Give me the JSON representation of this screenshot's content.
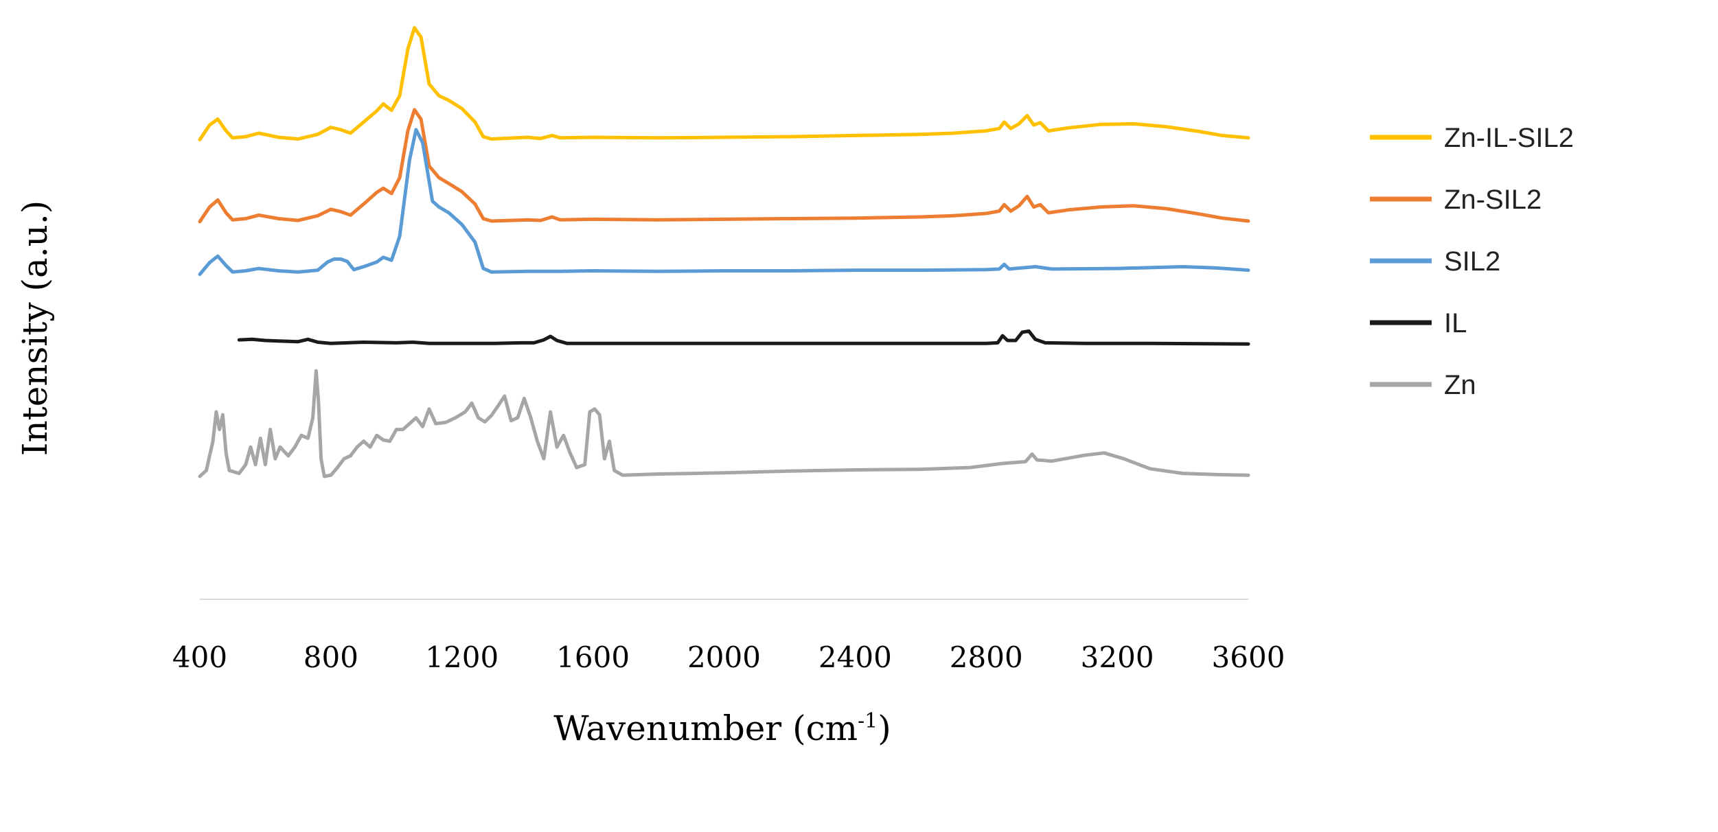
{
  "chart_data": {
    "type": "line",
    "title": "",
    "xlabel": "Wavenumber (cm",
    "xlabel_sup": "-1",
    "xlabel_close": ")",
    "ylabel": "Intensity (a.u.)",
    "xlim": [
      400,
      3600
    ],
    "ylim": [
      0,
      100
    ],
    "xticks": [
      400,
      800,
      1200,
      1600,
      2000,
      2400,
      2800,
      3200,
      3600
    ],
    "xtick_labels": [
      "400",
      "800",
      "1200",
      "1600",
      "2000",
      "2400",
      "2800",
      "3200",
      "3600"
    ],
    "grid": false,
    "legend_position": "right",
    "series": [
      {
        "name": "Zn-IL-SIL2",
        "color": "#FFC000",
        "points": [
          [
            400,
            78.5
          ],
          [
            430,
            81
          ],
          [
            455,
            82
          ],
          [
            480,
            80
          ],
          [
            500,
            78.8
          ],
          [
            540,
            79
          ],
          [
            580,
            79.6
          ],
          [
            640,
            78.9
          ],
          [
            700,
            78.6
          ],
          [
            760,
            79.4
          ],
          [
            800,
            80.6
          ],
          [
            830,
            80.2
          ],
          [
            860,
            79.6
          ],
          [
            900,
            81.5
          ],
          [
            940,
            83.4
          ],
          [
            960,
            84.6
          ],
          [
            985,
            83.5
          ],
          [
            1010,
            86
          ],
          [
            1035,
            94
          ],
          [
            1055,
            97.6
          ],
          [
            1075,
            96
          ],
          [
            1100,
            88
          ],
          [
            1130,
            86
          ],
          [
            1160,
            85.2
          ],
          [
            1200,
            83.8
          ],
          [
            1240,
            81.5
          ],
          [
            1265,
            79
          ],
          [
            1290,
            78.6
          ],
          [
            1400,
            78.9
          ],
          [
            1440,
            78.7
          ],
          [
            1475,
            79.2
          ],
          [
            1500,
            78.8
          ],
          [
            1600,
            78.9
          ],
          [
            1800,
            78.8
          ],
          [
            2000,
            78.9
          ],
          [
            2200,
            79
          ],
          [
            2400,
            79.2
          ],
          [
            2600,
            79.4
          ],
          [
            2700,
            79.6
          ],
          [
            2800,
            80
          ],
          [
            2840,
            80.4
          ],
          [
            2855,
            81.5
          ],
          [
            2875,
            80.4
          ],
          [
            2900,
            81.2
          ],
          [
            2925,
            82.6
          ],
          [
            2945,
            81
          ],
          [
            2965,
            81.4
          ],
          [
            2990,
            80
          ],
          [
            3050,
            80.5
          ],
          [
            3150,
            81.1
          ],
          [
            3250,
            81.2
          ],
          [
            3350,
            80.7
          ],
          [
            3450,
            79.9
          ],
          [
            3520,
            79.2
          ],
          [
            3600,
            78.8
          ]
        ]
      },
      {
        "name": "Zn-SIL2",
        "color": "#ED7D31",
        "points": [
          [
            400,
            64.5
          ],
          [
            430,
            67
          ],
          [
            455,
            68.2
          ],
          [
            480,
            66
          ],
          [
            500,
            64.8
          ],
          [
            540,
            65
          ],
          [
            580,
            65.6
          ],
          [
            640,
            65
          ],
          [
            700,
            64.7
          ],
          [
            760,
            65.5
          ],
          [
            800,
            66.6
          ],
          [
            830,
            66.2
          ],
          [
            860,
            65.6
          ],
          [
            900,
            67.5
          ],
          [
            940,
            69.5
          ],
          [
            960,
            70.2
          ],
          [
            985,
            69.3
          ],
          [
            1010,
            72
          ],
          [
            1035,
            80
          ],
          [
            1055,
            83.6
          ],
          [
            1075,
            82
          ],
          [
            1100,
            74
          ],
          [
            1130,
            72
          ],
          [
            1160,
            71
          ],
          [
            1200,
            69.6
          ],
          [
            1240,
            67.5
          ],
          [
            1265,
            65
          ],
          [
            1290,
            64.6
          ],
          [
            1400,
            64.8
          ],
          [
            1440,
            64.7
          ],
          [
            1475,
            65.3
          ],
          [
            1500,
            64.8
          ],
          [
            1600,
            64.9
          ],
          [
            1800,
            64.8
          ],
          [
            2000,
            64.9
          ],
          [
            2200,
            65
          ],
          [
            2400,
            65.1
          ],
          [
            2600,
            65.3
          ],
          [
            2700,
            65.5
          ],
          [
            2800,
            65.9
          ],
          [
            2840,
            66.3
          ],
          [
            2855,
            67.4
          ],
          [
            2875,
            66.3
          ],
          [
            2900,
            67.2
          ],
          [
            2925,
            68.8
          ],
          [
            2945,
            67
          ],
          [
            2965,
            67.4
          ],
          [
            2990,
            66
          ],
          [
            3050,
            66.5
          ],
          [
            3150,
            67
          ],
          [
            3250,
            67.2
          ],
          [
            3350,
            66.7
          ],
          [
            3450,
            65.8
          ],
          [
            3520,
            65.1
          ],
          [
            3600,
            64.6
          ]
        ]
      },
      {
        "name": "SIL2",
        "color": "#5B9BD5",
        "points": [
          [
            400,
            55.5
          ],
          [
            430,
            57.5
          ],
          [
            455,
            58.6
          ],
          [
            480,
            57
          ],
          [
            500,
            55.9
          ],
          [
            540,
            56.1
          ],
          [
            580,
            56.5
          ],
          [
            640,
            56.1
          ],
          [
            700,
            55.9
          ],
          [
            760,
            56.2
          ],
          [
            790,
            57.6
          ],
          [
            810,
            58.1
          ],
          [
            830,
            58.1
          ],
          [
            850,
            57.7
          ],
          [
            870,
            56.3
          ],
          [
            900,
            56.8
          ],
          [
            940,
            57.6
          ],
          [
            960,
            58.4
          ],
          [
            985,
            57.9
          ],
          [
            1010,
            62
          ],
          [
            1040,
            75
          ],
          [
            1060,
            80.2
          ],
          [
            1080,
            78
          ],
          [
            1110,
            68
          ],
          [
            1130,
            67
          ],
          [
            1160,
            66
          ],
          [
            1200,
            64
          ],
          [
            1240,
            61
          ],
          [
            1265,
            56.5
          ],
          [
            1290,
            55.9
          ],
          [
            1400,
            56
          ],
          [
            1500,
            56
          ],
          [
            1600,
            56.1
          ],
          [
            1800,
            56
          ],
          [
            2000,
            56.1
          ],
          [
            2200,
            56.1
          ],
          [
            2400,
            56.2
          ],
          [
            2600,
            56.2
          ],
          [
            2800,
            56.3
          ],
          [
            2840,
            56.4
          ],
          [
            2855,
            57.2
          ],
          [
            2870,
            56.4
          ],
          [
            2950,
            56.8
          ],
          [
            3000,
            56.4
          ],
          [
            3200,
            56.5
          ],
          [
            3400,
            56.8
          ],
          [
            3500,
            56.6
          ],
          [
            3600,
            56.2
          ]
        ]
      },
      {
        "name": "IL",
        "color": "#1A1A1A",
        "points": [
          [
            520,
            44.3
          ],
          [
            560,
            44.4
          ],
          [
            600,
            44.2
          ],
          [
            640,
            44.1
          ],
          [
            700,
            44
          ],
          [
            730,
            44.4
          ],
          [
            760,
            43.9
          ],
          [
            800,
            43.7
          ],
          [
            900,
            43.9
          ],
          [
            1000,
            43.8
          ],
          [
            1050,
            43.9
          ],
          [
            1100,
            43.7
          ],
          [
            1300,
            43.7
          ],
          [
            1380,
            43.8
          ],
          [
            1420,
            43.8
          ],
          [
            1450,
            44.3
          ],
          [
            1470,
            44.9
          ],
          [
            1490,
            44.2
          ],
          [
            1520,
            43.7
          ],
          [
            1800,
            43.7
          ],
          [
            2200,
            43.7
          ],
          [
            2600,
            43.7
          ],
          [
            2800,
            43.7
          ],
          [
            2835,
            43.8
          ],
          [
            2850,
            45
          ],
          [
            2865,
            44.2
          ],
          [
            2890,
            44.2
          ],
          [
            2910,
            45.6
          ],
          [
            2930,
            45.8
          ],
          [
            2950,
            44.4
          ],
          [
            2980,
            43.8
          ],
          [
            3100,
            43.7
          ],
          [
            3300,
            43.7
          ],
          [
            3600,
            43.6
          ]
        ]
      },
      {
        "name": "Zn",
        "color": "#A6A6A6",
        "points": [
          [
            400,
            21
          ],
          [
            420,
            22
          ],
          [
            440,
            27
          ],
          [
            450,
            32
          ],
          [
            460,
            29
          ],
          [
            470,
            31.5
          ],
          [
            480,
            25
          ],
          [
            490,
            22
          ],
          [
            520,
            21.5
          ],
          [
            540,
            23
          ],
          [
            555,
            26
          ],
          [
            570,
            23
          ],
          [
            585,
            27.5
          ],
          [
            600,
            23
          ],
          [
            615,
            29
          ],
          [
            630,
            24
          ],
          [
            645,
            26
          ],
          [
            670,
            24.5
          ],
          [
            690,
            26
          ],
          [
            710,
            28
          ],
          [
            730,
            27.5
          ],
          [
            745,
            31
          ],
          [
            755,
            39
          ],
          [
            762,
            34
          ],
          [
            770,
            24
          ],
          [
            780,
            21
          ],
          [
            800,
            21.2
          ],
          [
            820,
            22.5
          ],
          [
            840,
            24
          ],
          [
            860,
            24.5
          ],
          [
            880,
            26
          ],
          [
            900,
            27
          ],
          [
            920,
            26
          ],
          [
            940,
            28
          ],
          [
            960,
            27.2
          ],
          [
            980,
            27
          ],
          [
            1000,
            29
          ],
          [
            1020,
            29
          ],
          [
            1040,
            30
          ],
          [
            1060,
            31
          ],
          [
            1080,
            29.5
          ],
          [
            1100,
            32.5
          ],
          [
            1120,
            30
          ],
          [
            1150,
            30.2
          ],
          [
            1180,
            31
          ],
          [
            1210,
            32
          ],
          [
            1230,
            33.5
          ],
          [
            1250,
            31
          ],
          [
            1270,
            30.3
          ],
          [
            1290,
            31.4
          ],
          [
            1310,
            33
          ],
          [
            1330,
            34.7
          ],
          [
            1350,
            30.5
          ],
          [
            1370,
            31
          ],
          [
            1390,
            34.3
          ],
          [
            1410,
            31
          ],
          [
            1430,
            27
          ],
          [
            1450,
            24
          ],
          [
            1470,
            32
          ],
          [
            1490,
            26
          ],
          [
            1510,
            28
          ],
          [
            1530,
            25
          ],
          [
            1550,
            22.5
          ],
          [
            1575,
            23
          ],
          [
            1590,
            32
          ],
          [
            1605,
            32.5
          ],
          [
            1620,
            31.5
          ],
          [
            1635,
            24
          ],
          [
            1650,
            27
          ],
          [
            1665,
            22
          ],
          [
            1690,
            21.2
          ],
          [
            1800,
            21.4
          ],
          [
            2000,
            21.6
          ],
          [
            2200,
            21.9
          ],
          [
            2400,
            22.1
          ],
          [
            2600,
            22.2
          ],
          [
            2750,
            22.5
          ],
          [
            2850,
            23.2
          ],
          [
            2920,
            23.5
          ],
          [
            2940,
            24.8
          ],
          [
            2955,
            23.8
          ],
          [
            3000,
            23.6
          ],
          [
            3100,
            24.6
          ],
          [
            3160,
            25
          ],
          [
            3220,
            24
          ],
          [
            3300,
            22.3
          ],
          [
            3400,
            21.5
          ],
          [
            3500,
            21.3
          ],
          [
            3600,
            21.2
          ]
        ]
      }
    ]
  }
}
